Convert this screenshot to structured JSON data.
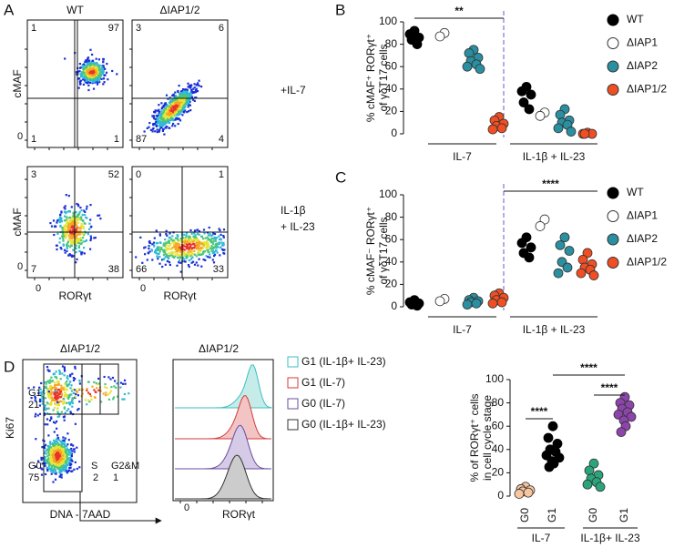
{
  "panel_labels": [
    "A",
    "B",
    "C",
    "D"
  ],
  "panel_a": {
    "columns": [
      "WT",
      "ΔIAP1/2"
    ],
    "y_label": "cMAF",
    "x_label": "RORγt",
    "zero_tick": 0,
    "rows": [
      {
        "label": [
          "+IL-7"
        ],
        "plots": [
          {
            "quadrants": [
              1,
              97,
              1,
              1
            ]
          },
          {
            "quadrants": [
              3,
              6,
              87,
              4
            ]
          }
        ]
      },
      {
        "label": [
          "IL-1β",
          "+ IL-23"
        ],
        "plots": [
          {
            "quadrants": [
              3,
              52,
              7,
              38
            ]
          },
          {
            "quadrants": [
              0,
              1,
              66,
              33
            ]
          }
        ]
      }
    ]
  },
  "panel_d_flow": {
    "title": "ΔIAP1/2",
    "y_label": "Ki67",
    "x_label": "DNA - 7AAD",
    "gates": [
      {
        "name": "G1",
        "percent": 21
      },
      {
        "name": "G0",
        "percent": 75
      },
      {
        "name": "S",
        "percent": 2
      },
      {
        "name": "G2&M",
        "percent": 1
      }
    ]
  },
  "panel_d_histogram": {
    "title": "ΔIAP1/2",
    "x_label": "RORγt",
    "zero_tick": 0,
    "legend": [
      {
        "name": "G1 (IL-1β+ IL-23)",
        "color": "#3bbfbf"
      },
      {
        "name": "G1 (IL-7)",
        "color": "#d83a3a"
      },
      {
        "name": "G0 (IL-7)",
        "color": "#6a4c9c"
      },
      {
        "name": "G0 (IL-1β+ IL-23)",
        "color": "#333333"
      }
    ]
  },
  "chart_data": [
    {
      "type": "strip",
      "y_label": [
        "% cMAF⁺ RORγt⁺",
        "of γδT17 cells"
      ],
      "categories": [
        "IL-7",
        "IL-1β + IL-23"
      ],
      "ylim": [
        0,
        100
      ],
      "yticks": [
        0,
        20,
        40,
        60,
        80,
        100
      ],
      "annotations": [
        "**"
      ],
      "series": [
        {
          "name": "WT",
          "color": "#000000",
          "values": [
            [
              92,
              89,
              86,
              84,
              80
            ],
            [
              42,
              38,
              35,
              28,
              22
            ]
          ]
        },
        {
          "name": "ΔIAP1",
          "color": "#ffffff",
          "values": [
            [
              90,
              87
            ],
            [
              19,
              16
            ]
          ]
        },
        {
          "name": "ΔIAP2",
          "color": "#2a8fa0",
          "values": [
            [
              75,
              72,
              68,
              65,
              62,
              60,
              58
            ],
            [
              22,
              17,
              12,
              10,
              8,
              5,
              2
            ]
          ]
        },
        {
          "name": "ΔIAP1/2",
          "color": "#f04e23",
          "values": [
            [
              15,
              12,
              9,
              7,
              5,
              4
            ],
            [
              1,
              0,
              0,
              0
            ]
          ]
        }
      ]
    },
    {
      "type": "strip",
      "y_label": [
        "% cMAF⁻ RORγt⁺",
        "of γδT17 cells"
      ],
      "categories": [
        "IL-7",
        "IL-1β + IL-23"
      ],
      "ylim": [
        0,
        100
      ],
      "yticks": [
        0,
        20,
        40,
        60,
        80,
        100
      ],
      "annotations": [
        "****"
      ],
      "series": [
        {
          "name": "WT",
          "color": "#000000",
          "values": [
            [
              6,
              4,
              3,
              2,
              1
            ],
            [
              62,
              57,
              53,
              48,
              44
            ]
          ]
        },
        {
          "name": "ΔIAP1",
          "color": "#ffffff",
          "values": [
            [
              7,
              5
            ],
            [
              78,
              72
            ]
          ]
        },
        {
          "name": "ΔIAP2",
          "color": "#2a8fa0",
          "values": [
            [
              8,
              6,
              5,
              4,
              3,
              2
            ],
            [
              62,
              55,
              50,
              40,
              35,
              30
            ]
          ]
        },
        {
          "name": "ΔIAP1/2",
          "color": "#f04e23",
          "values": [
            [
              12,
              10,
              8,
              6,
              4,
              3
            ],
            [
              48,
              42,
              38,
              35,
              33,
              30,
              28
            ]
          ]
        }
      ]
    },
    {
      "type": "strip",
      "y_label": [
        "% of RORγt⁺ cells",
        "in cell cycle stage"
      ],
      "categories": [
        "G0",
        "G1",
        "G0",
        "G1"
      ],
      "groups": [
        "IL-7",
        "IL-1β+ IL-23"
      ],
      "colors": [
        "#f5c6a0",
        "#000000",
        "#2aa57a",
        "#8e44ad"
      ],
      "ylim": [
        0,
        100
      ],
      "yticks": [
        0,
        20,
        40,
        60,
        80,
        100
      ],
      "annotations": [
        "****",
        "****",
        "****"
      ],
      "values": [
        [
          8,
          6,
          5,
          4,
          3,
          2
        ],
        [
          60,
          50,
          45,
          40,
          38,
          35,
          33,
          30,
          28,
          25
        ],
        [
          28,
          22,
          18,
          15,
          12,
          10,
          8
        ],
        [
          85,
          80,
          78,
          75,
          72,
          70,
          68,
          65,
          60,
          55
        ]
      ]
    }
  ]
}
